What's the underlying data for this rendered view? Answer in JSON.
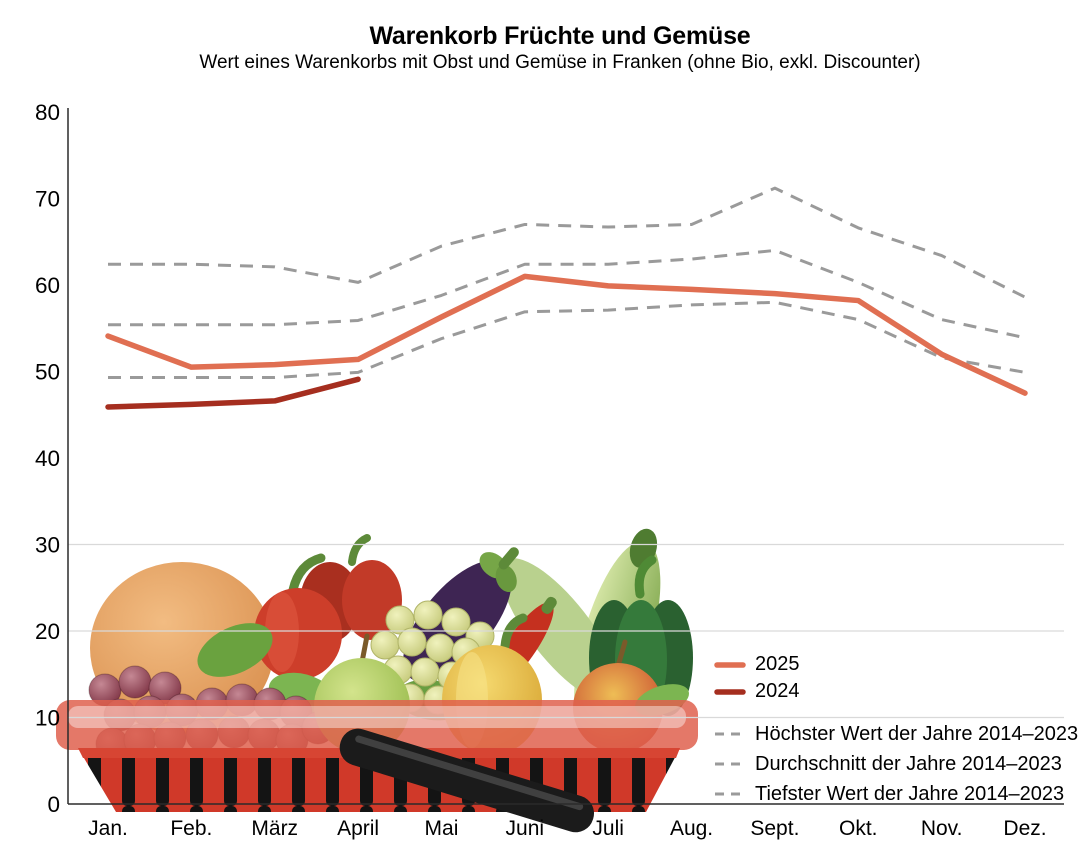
{
  "title": "Warenkorb Früchte und Gemüse",
  "subtitle": "Wert eines Warenkorbs mit Obst und Gemüse in Franken (ohne Bio, exkl. Discounter)",
  "legend": {
    "dashed_color": "#9a9a9a"
  },
  "axes": {
    "axis_color": "#2b2b2b",
    "grid_color": "#d9d9d9",
    "tick_label_color": "#000000"
  },
  "chart_data": {
    "type": "line",
    "categories": [
      "Jan.",
      "Feb.",
      "März",
      "April",
      "Mai",
      "Juni",
      "Juli",
      "Aug.",
      "Sept.",
      "Okt.",
      "Nov.",
      "Dez."
    ],
    "series": [
      {
        "name": "2025",
        "style": "solid",
        "color": "#e06f52",
        "values": [
          54.1,
          50.5,
          50.8,
          51.4,
          56.3,
          61.0,
          59.9,
          59.5,
          59.0,
          58.2,
          52.0,
          47.5
        ]
      },
      {
        "name": "2024",
        "style": "solid",
        "color": "#a52e1f",
        "values": [
          45.9,
          46.2,
          46.6,
          49.1,
          null,
          null,
          null,
          null,
          null,
          null,
          null,
          null
        ]
      },
      {
        "name": "Höchster Wert der Jahre 2014–2023",
        "style": "dashed",
        "color": "#9a9a9a",
        "values": [
          62.4,
          62.4,
          62.1,
          60.3,
          64.5,
          67.0,
          66.7,
          67.0,
          71.2,
          66.6,
          63.4,
          58.6
        ]
      },
      {
        "name": "Durchschnitt der Jahre 2014–2023",
        "style": "dashed",
        "color": "#9a9a9a",
        "values": [
          55.4,
          55.4,
          55.4,
          55.9,
          58.8,
          62.4,
          62.4,
          63.0,
          64.0,
          60.3,
          56.0,
          53.9
        ]
      },
      {
        "name": "Tiefster Wert der Jahre 2014–2023",
        "style": "dashed",
        "color": "#9a9a9a",
        "values": [
          49.3,
          49.3,
          49.3,
          49.9,
          53.8,
          56.9,
          57.1,
          57.7,
          58.0,
          56.0,
          51.6,
          49.9
        ]
      }
    ],
    "ylim": [
      0,
      80
    ],
    "yticks": [
      0,
      10,
      20,
      30,
      40,
      50,
      60,
      70,
      80
    ],
    "gridlines_at": [
      10,
      20,
      30
    ],
    "grid": "partial",
    "legend_position": "right-bottom",
    "xlabel": "",
    "ylabel": ""
  }
}
